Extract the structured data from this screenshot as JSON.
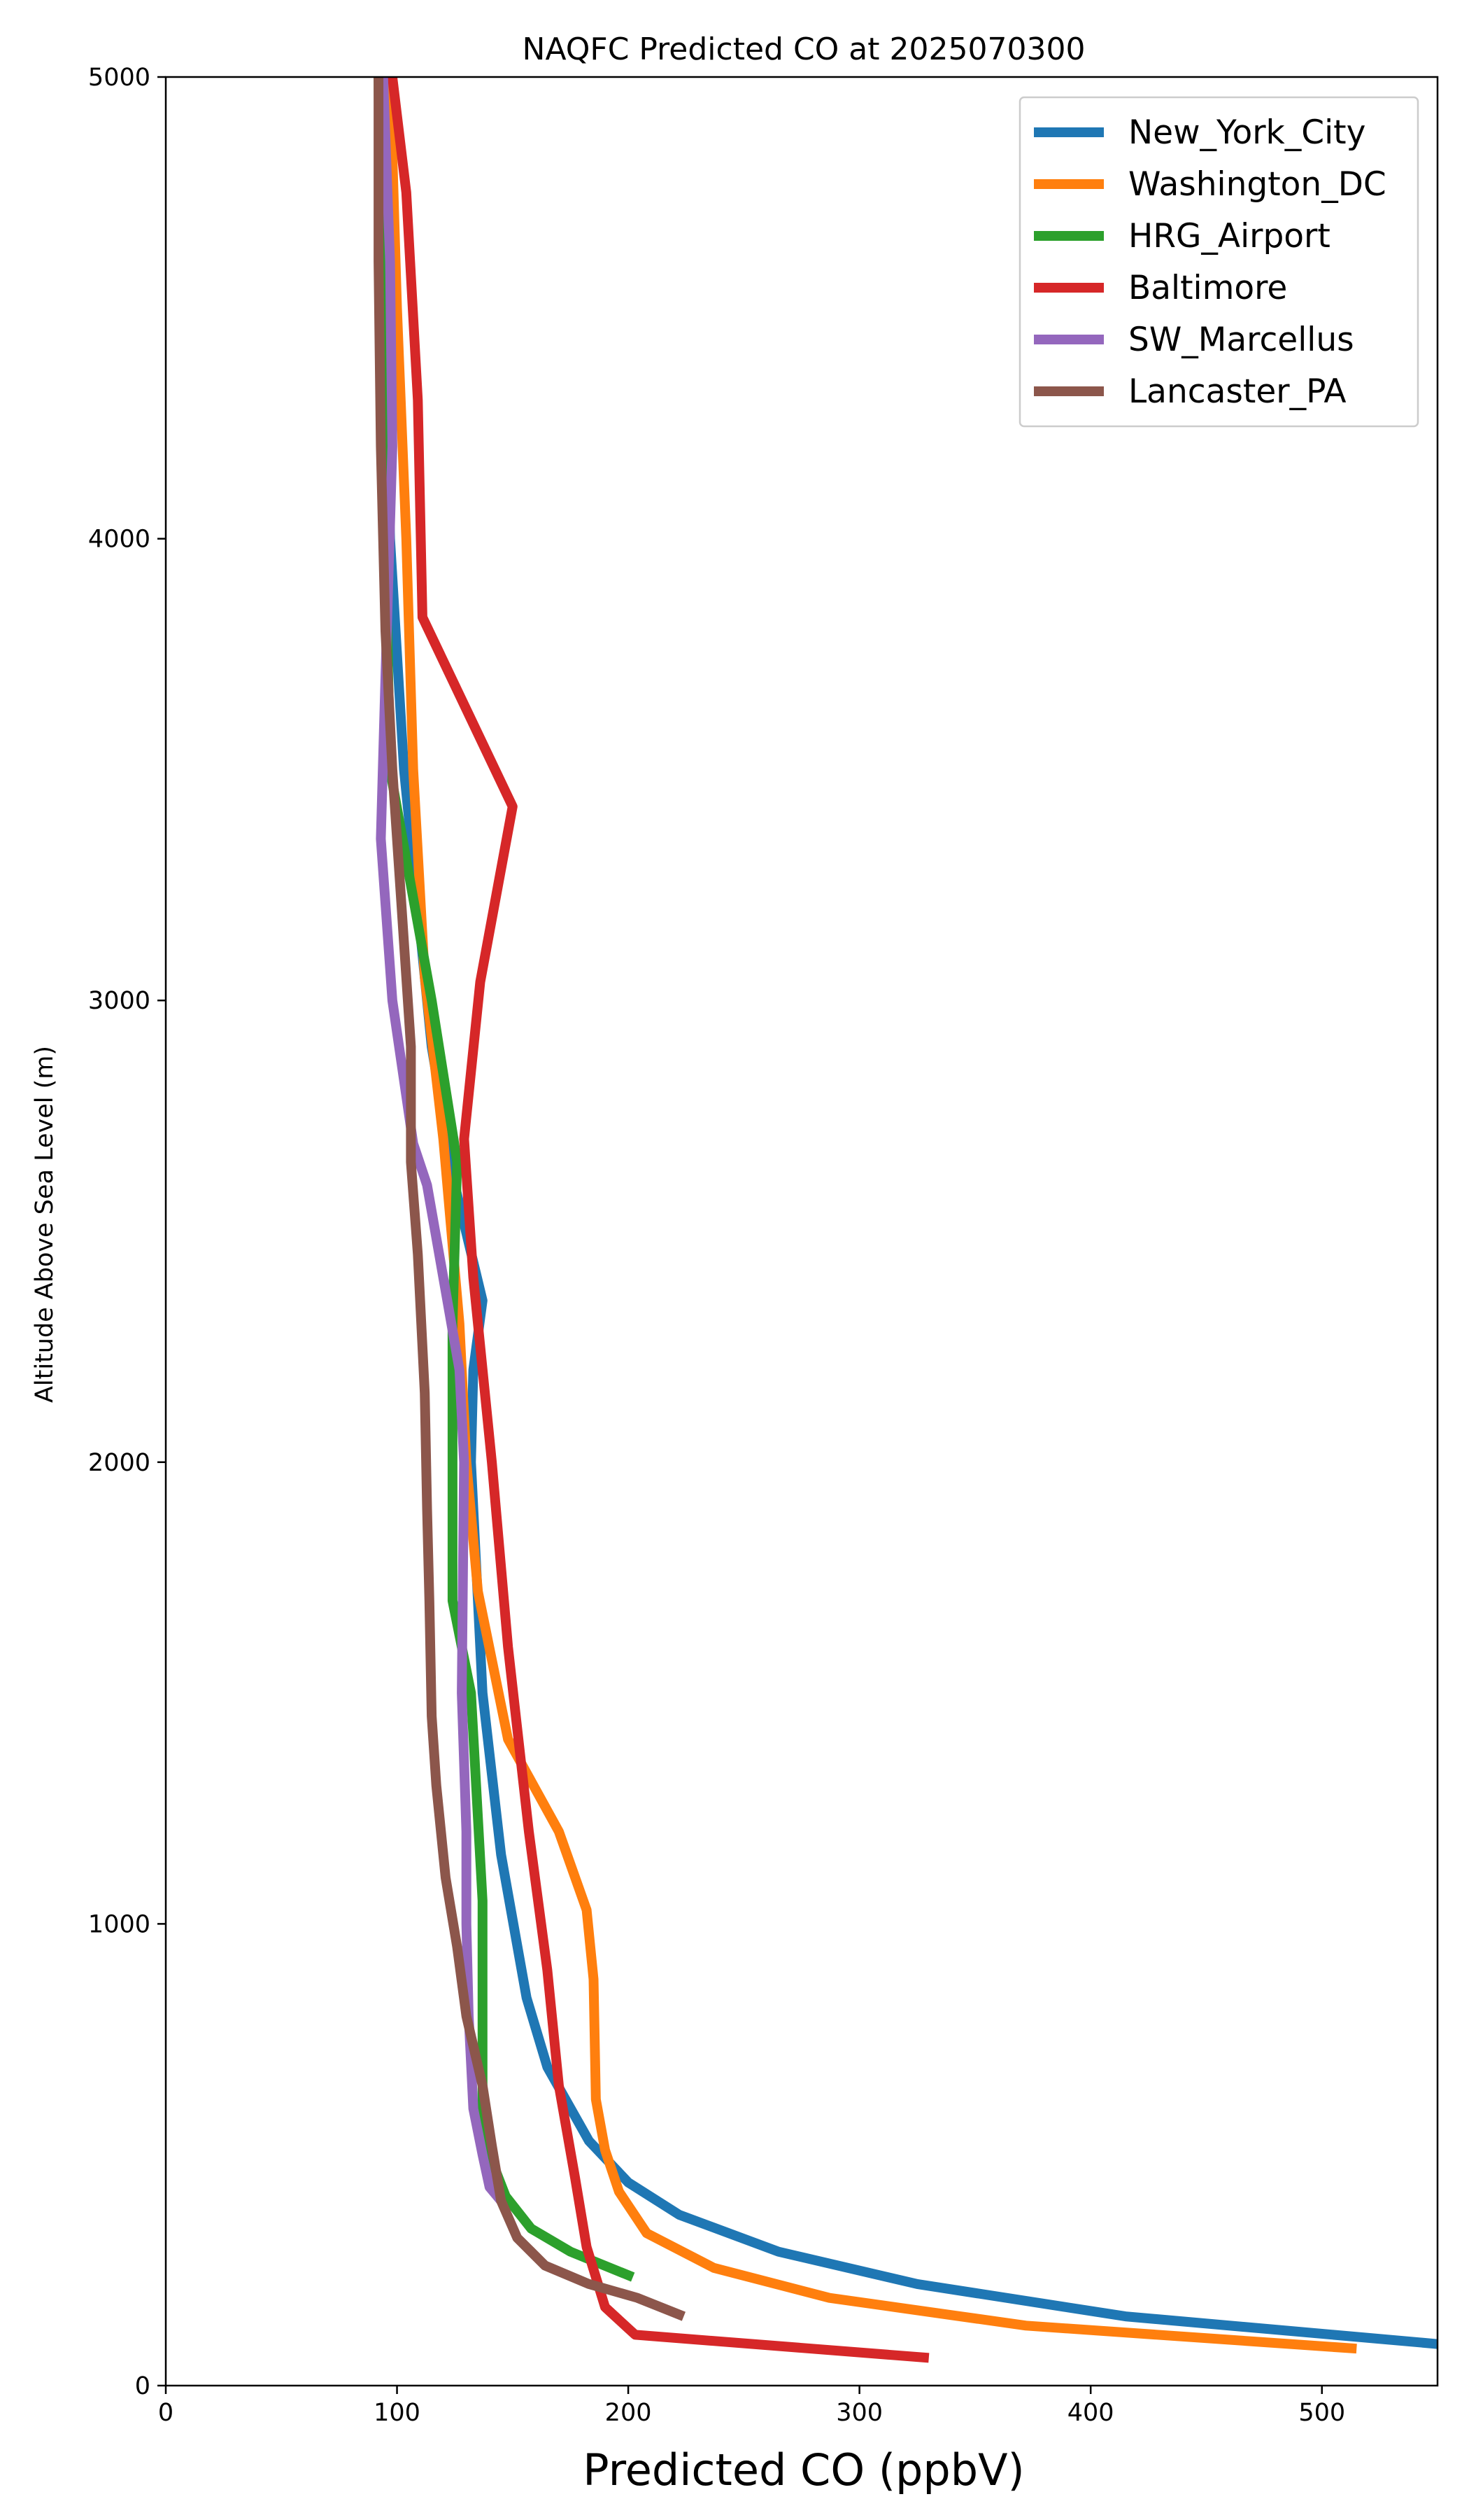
{
  "chart_data": {
    "type": "line",
    "title": "NAQFC Predicted CO at 2025070300",
    "xlabel": "Predicted CO (ppbV)",
    "ylabel": "Altitude Above Sea Level (m)",
    "xlim": [
      0,
      550
    ],
    "ylim": [
      0,
      5000
    ],
    "xticks": [
      0,
      100,
      200,
      300,
      400,
      500
    ],
    "yticks": [
      0,
      1000,
      2000,
      3000,
      4000,
      5000
    ],
    "legend_position": "upper right",
    "grid": false,
    "series": [
      {
        "name": "New_York_City",
        "color": "#1f77b4",
        "points": [
          [
            550,
            90
          ],
          [
            415,
            150
          ],
          [
            325,
            220
          ],
          [
            265,
            290
          ],
          [
            222,
            370
          ],
          [
            200,
            440
          ],
          [
            183,
            530
          ],
          [
            165,
            690
          ],
          [
            156,
            840
          ],
          [
            145,
            1150
          ],
          [
            137,
            1500
          ],
          [
            132,
            2000
          ],
          [
            133,
            2200
          ],
          [
            137,
            2350
          ],
          [
            125,
            2600
          ],
          [
            115,
            2900
          ],
          [
            103,
            3500
          ],
          [
            97,
            4000
          ],
          [
            95,
            4500
          ],
          [
            94,
            5000
          ]
        ]
      },
      {
        "name": "Washington_DC",
        "color": "#ff7f0e",
        "points": [
          [
            515,
            80
          ],
          [
            372,
            130
          ],
          [
            287,
            190
          ],
          [
            237,
            255
          ],
          [
            208,
            330
          ],
          [
            196,
            420
          ],
          [
            190,
            510
          ],
          [
            186,
            620
          ],
          [
            185,
            880
          ],
          [
            182,
            1030
          ],
          [
            170,
            1200
          ],
          [
            148,
            1400
          ],
          [
            135,
            1720
          ],
          [
            130,
            2000
          ],
          [
            127,
            2300
          ],
          [
            120,
            2700
          ],
          [
            112,
            3050
          ],
          [
            107,
            3500
          ],
          [
            104,
            4000
          ],
          [
            100,
            4500
          ],
          [
            97,
            5000
          ]
        ]
      },
      {
        "name": "HRG_Airport",
        "color": "#2ca02c",
        "points": [
          [
            202,
            235
          ],
          [
            175,
            290
          ],
          [
            158,
            340
          ],
          [
            147,
            410
          ],
          [
            140,
            500
          ],
          [
            137,
            560
          ],
          [
            137,
            1050
          ],
          [
            132,
            1500
          ],
          [
            124,
            1700
          ],
          [
            124,
            2300
          ],
          [
            126,
            2650
          ],
          [
            115,
            3000
          ],
          [
            97,
            3500
          ],
          [
            95,
            4000
          ],
          [
            93,
            4500
          ],
          [
            92,
            5000
          ]
        ]
      },
      {
        "name": "Baltimore",
        "color": "#d62728",
        "points": [
          [
            330,
            60
          ],
          [
            203,
            110
          ],
          [
            190,
            170
          ],
          [
            182,
            300
          ],
          [
            177,
            450
          ],
          [
            170,
            650
          ],
          [
            165,
            900
          ],
          [
            157,
            1200
          ],
          [
            148,
            1600
          ],
          [
            141,
            2000
          ],
          [
            133,
            2400
          ],
          [
            129,
            2700
          ],
          [
            136,
            3040
          ],
          [
            150,
            3420
          ],
          [
            111,
            3830
          ],
          [
            109,
            4300
          ],
          [
            104,
            4750
          ],
          [
            98,
            5000
          ]
        ]
      },
      {
        "name": "SW_Marcellus",
        "color": "#9467bd",
        "points": [
          [
            145,
            400
          ],
          [
            140,
            430
          ],
          [
            137,
            500
          ],
          [
            133,
            600
          ],
          [
            131,
            800
          ],
          [
            130,
            1000
          ],
          [
            130,
            1200
          ],
          [
            128,
            1500
          ],
          [
            129,
            2000
          ],
          [
            127,
            2200
          ],
          [
            113,
            2600
          ],
          [
            107,
            2690
          ],
          [
            98,
            3000
          ],
          [
            93,
            3350
          ],
          [
            95,
            3700
          ],
          [
            98,
            4200
          ],
          [
            97,
            4600
          ],
          [
            94,
            5000
          ]
        ]
      },
      {
        "name": "Lancaster_PA",
        "color": "#8c564b",
        "points": [
          [
            224,
            150
          ],
          [
            204,
            190
          ],
          [
            183,
            220
          ],
          [
            164,
            260
          ],
          [
            152,
            320
          ],
          [
            145,
            400
          ],
          [
            141,
            520
          ],
          [
            137,
            650
          ],
          [
            130,
            800
          ],
          [
            126,
            950
          ],
          [
            121,
            1100
          ],
          [
            117,
            1300
          ],
          [
            115,
            1450
          ],
          [
            114,
            1700
          ],
          [
            113,
            1900
          ],
          [
            112,
            2150
          ],
          [
            109,
            2450
          ],
          [
            106,
            2650
          ],
          [
            106,
            2900
          ],
          [
            102,
            3200
          ],
          [
            98,
            3500
          ],
          [
            95,
            3800
          ],
          [
            93,
            4200
          ],
          [
            92,
            4600
          ],
          [
            92,
            5000
          ]
        ]
      }
    ]
  }
}
